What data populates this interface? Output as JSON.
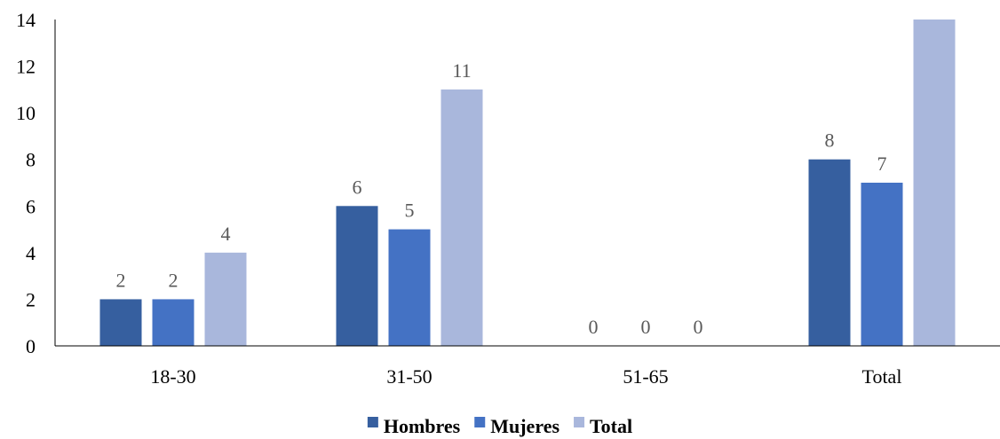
{
  "chart_data": {
    "type": "bar",
    "title": "",
    "xlabel": "",
    "ylabel": "",
    "categories": [
      "18-30",
      "31-50",
      "51-65",
      "Total"
    ],
    "series": [
      {
        "name": "Hombres",
        "color": "#365f9f",
        "values": [
          2,
          6,
          0,
          8
        ],
        "labels": [
          "2",
          "6",
          "0",
          "8"
        ]
      },
      {
        "name": "Mujeres",
        "color": "#4472c4",
        "values": [
          2,
          5,
          0,
          7
        ],
        "labels": [
          "2",
          "5",
          "0",
          "7"
        ]
      },
      {
        "name": "Total",
        "color": "#a9b7dc",
        "values": [
          4,
          11,
          0,
          15
        ],
        "labels": [
          "4",
          "11",
          "0",
          ""
        ]
      }
    ],
    "ylim": [
      0,
      14
    ],
    "yticks": [
      "0",
      "2",
      "4",
      "6",
      "8",
      "10",
      "12",
      "14"
    ],
    "grid": false,
    "legend": "bottom"
  }
}
